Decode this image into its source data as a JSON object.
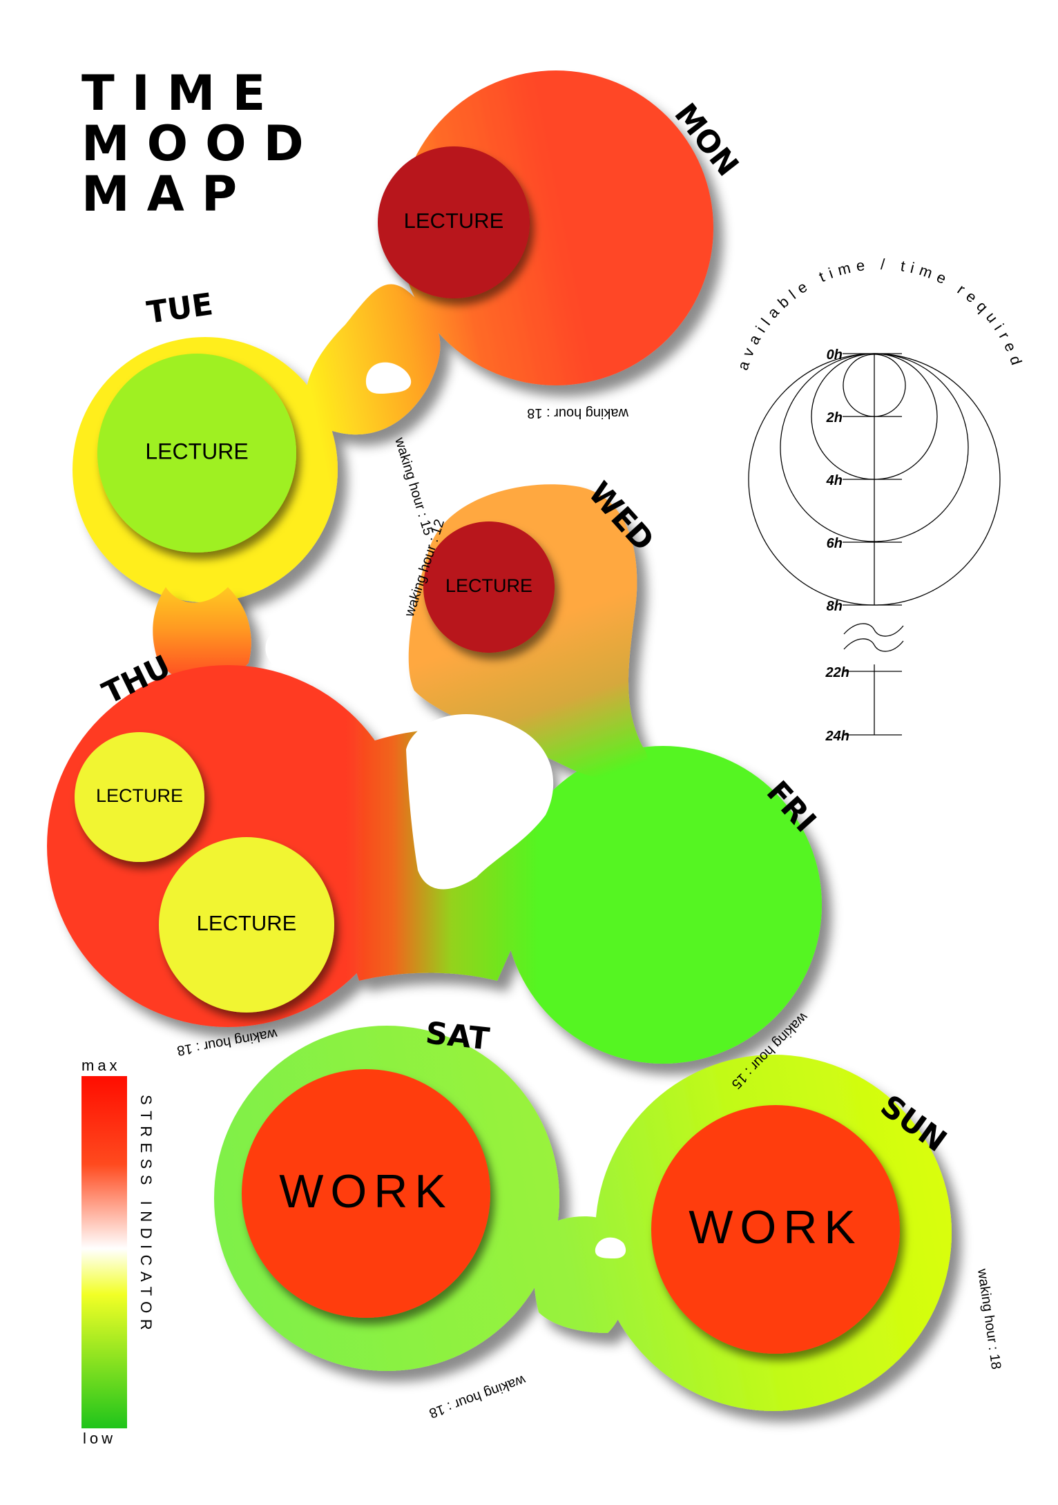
{
  "title": [
    "TIME",
    "MOOD",
    "MAP"
  ],
  "days": {
    "mon": {
      "label": "MON",
      "activities": [
        "LECTURE"
      ],
      "waking": "waking hour : 18"
    },
    "tue": {
      "label": "TUE",
      "activities": [
        "LECTURE"
      ],
      "waking": "waking hour : 15"
    },
    "wed": {
      "label": "WED",
      "activities": [
        "LECTURE"
      ],
      "waking": "waking hour : 12"
    },
    "thu": {
      "label": "THU",
      "activities": [
        "LECTURE",
        "LECTURE"
      ],
      "waking": "waking hour : 18"
    },
    "fri": {
      "label": "FRI",
      "activities": [],
      "waking": "waking hour : 15"
    },
    "sat": {
      "label": "SAT",
      "activities": [
        "WORK"
      ],
      "waking": "waking hour : 18"
    },
    "sun": {
      "label": "SUN",
      "activities": [
        "WORK"
      ],
      "waking": "waking hour : 18"
    }
  },
  "scale": {
    "title": "available time / time required",
    "ticks": [
      "0h",
      "2h",
      "4h",
      "6h",
      "8h",
      "22h",
      "24h"
    ]
  },
  "legend": {
    "title": "STRESS INDICATOR",
    "max": "max",
    "low": "low",
    "colors": [
      "#ff0d00",
      "#ff4a1e",
      "#ffffff",
      "#f2ff26",
      "#1fc41b"
    ]
  },
  "colors": {
    "mon": "#ff4726",
    "tue": "#ffee1e",
    "wed": "#ffa840",
    "thu": "#ff3a22",
    "fri": "#54f520",
    "sat": "#88f24a",
    "sun": "#d4ff10",
    "lecture_dark": "#b8121a",
    "lecture_green": "#9ff021",
    "lecture_yellow": "#f1f531",
    "work": "#ff3c10"
  }
}
